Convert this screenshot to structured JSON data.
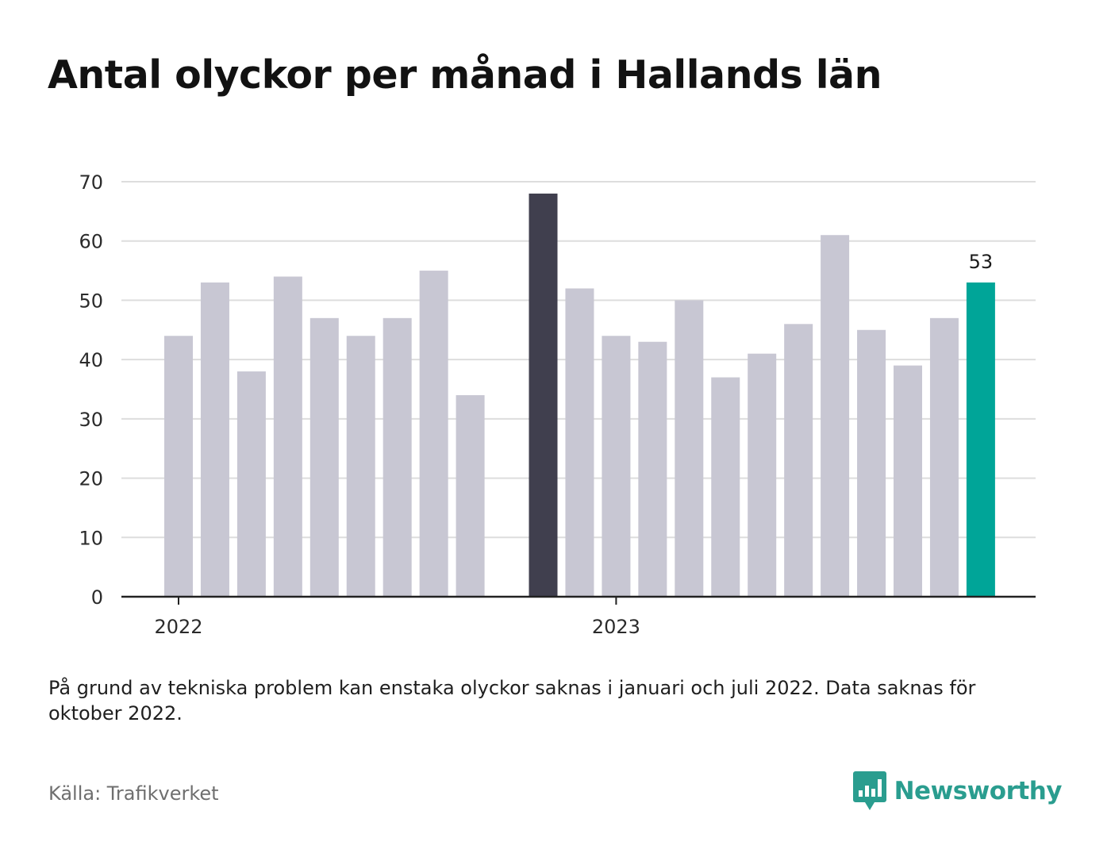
{
  "title": "Antal olyckor per månad i Hallands län",
  "note": "På grund av tekniska problem kan enstaka olyckor saknas i januari och juli 2022. Data saknas för oktober 2022.",
  "source": "Källa: Trafikverket",
  "brand": {
    "name": "Newsworthy",
    "icon": "newsworthy-bar-chart-icon",
    "color": "#2a9d8f"
  },
  "colors": {
    "default": "#c8c7d3",
    "highlight": "#403f4e",
    "latest": "#00a598",
    "grid": "#dddddd",
    "axis": "#222222"
  },
  "chart_data": {
    "type": "bar",
    "ylim": [
      0,
      70
    ],
    "yticks": [
      0,
      10,
      20,
      30,
      40,
      50,
      60,
      70
    ],
    "x_labels": [
      {
        "label": "2022",
        "at": "2022-01"
      },
      {
        "label": "2023",
        "at": "2023-01"
      }
    ],
    "grid": true,
    "series": [
      {
        "points": [
          {
            "x": "2022-01",
            "y": 44
          },
          {
            "x": "2022-02",
            "y": 53
          },
          {
            "x": "2022-03",
            "y": 38
          },
          {
            "x": "2022-04",
            "y": 54
          },
          {
            "x": "2022-05",
            "y": 47
          },
          {
            "x": "2022-06",
            "y": 44
          },
          {
            "x": "2022-07",
            "y": 47
          },
          {
            "x": "2022-08",
            "y": 55
          },
          {
            "x": "2022-09",
            "y": 34
          },
          {
            "x": "2022-10",
            "y": null
          },
          {
            "x": "2022-11",
            "y": 68,
            "highlight": "highlight"
          },
          {
            "x": "2022-12",
            "y": 52
          },
          {
            "x": "2023-01",
            "y": 44
          },
          {
            "x": "2023-02",
            "y": 43
          },
          {
            "x": "2023-03",
            "y": 50
          },
          {
            "x": "2023-04",
            "y": 37
          },
          {
            "x": "2023-05",
            "y": 41
          },
          {
            "x": "2023-06",
            "y": 46
          },
          {
            "x": "2023-07",
            "y": 61
          },
          {
            "x": "2023-08",
            "y": 45
          },
          {
            "x": "2023-09",
            "y": 39
          },
          {
            "x": "2023-10",
            "y": 47
          },
          {
            "x": "2023-11",
            "y": 53,
            "highlight": "latest",
            "label": "53"
          }
        ]
      }
    ]
  }
}
